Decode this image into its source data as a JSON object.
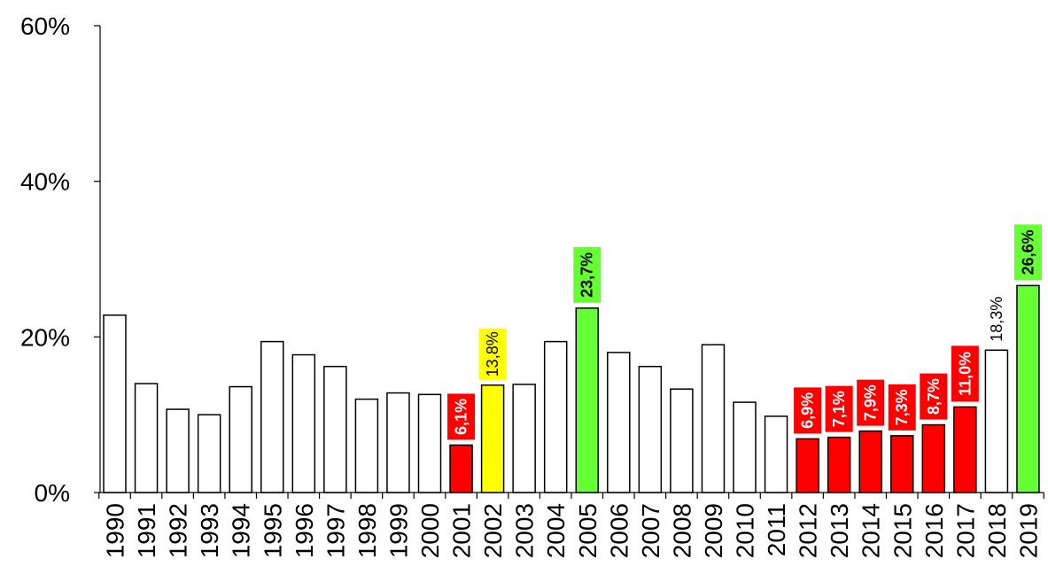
{
  "chart_data": {
    "type": "bar",
    "title": "",
    "xlabel": "",
    "ylabel": "",
    "ylim": [
      0,
      60
    ],
    "yticks": [
      0,
      20,
      40,
      60
    ],
    "ytick_labels": [
      "0%",
      "20%",
      "40%",
      "60%"
    ],
    "grid": false,
    "legend": "none",
    "categories": [
      "1990",
      "1991",
      "1992",
      "1993",
      "1994",
      "1995",
      "1996",
      "1997",
      "1998",
      "1999",
      "2000",
      "2001",
      "2002",
      "2003",
      "2004",
      "2005",
      "2006",
      "2007",
      "2008",
      "2009",
      "2010",
      "2011",
      "2012",
      "2013",
      "2014",
      "2015",
      "2016",
      "2017",
      "2018",
      "2019"
    ],
    "values": [
      22.8,
      14.0,
      10.7,
      10.0,
      13.6,
      19.4,
      17.7,
      16.2,
      12.0,
      12.8,
      12.6,
      6.1,
      13.8,
      13.9,
      19.4,
      23.7,
      18.0,
      16.2,
      13.3,
      19.0,
      11.6,
      9.8,
      6.9,
      7.1,
      7.9,
      7.3,
      8.7,
      11.0,
      18.3,
      26.6
    ],
    "bar_colors": [
      "#ffffff",
      "#ffffff",
      "#ffffff",
      "#ffffff",
      "#ffffff",
      "#ffffff",
      "#ffffff",
      "#ffffff",
      "#ffffff",
      "#ffffff",
      "#ffffff",
      "#ff0000",
      "#ffff00",
      "#ffffff",
      "#ffffff",
      "#66ff33",
      "#ffffff",
      "#ffffff",
      "#ffffff",
      "#ffffff",
      "#ffffff",
      "#ffffff",
      "#ff0000",
      "#ff0000",
      "#ff0000",
      "#ff0000",
      "#ff0000",
      "#ff0000",
      "#ffffff",
      "#66ff33"
    ],
    "data_labels": [
      {
        "index": 11,
        "text": "6,1%",
        "bg": "#ff0000",
        "color": "#ffffff",
        "bold": true
      },
      {
        "index": 12,
        "text": "13,8%",
        "bg": "#ffff00",
        "color": "#000000",
        "bold": false
      },
      {
        "index": 15,
        "text": "23,7%",
        "bg": "#66ff33",
        "color": "#000000",
        "bold": true
      },
      {
        "index": 22,
        "text": "6,9%",
        "bg": "#ff0000",
        "color": "#ffffff",
        "bold": true
      },
      {
        "index": 23,
        "text": "7,1%",
        "bg": "#ff0000",
        "color": "#ffffff",
        "bold": true
      },
      {
        "index": 24,
        "text": "7,9%",
        "bg": "#ff0000",
        "color": "#ffffff",
        "bold": true
      },
      {
        "index": 25,
        "text": "7,3%",
        "bg": "#ff0000",
        "color": "#ffffff",
        "bold": true
      },
      {
        "index": 26,
        "text": "8,7%",
        "bg": "#ff0000",
        "color": "#ffffff",
        "bold": true
      },
      {
        "index": 27,
        "text": "11,0%",
        "bg": "#ff0000",
        "color": "#ffffff",
        "bold": true
      },
      {
        "index": 28,
        "text": "18,3%",
        "bg": "",
        "color": "#000000",
        "bold": false
      },
      {
        "index": 29,
        "text": "26,6%",
        "bg": "#66ff33",
        "color": "#000000",
        "bold": true
      }
    ]
  }
}
